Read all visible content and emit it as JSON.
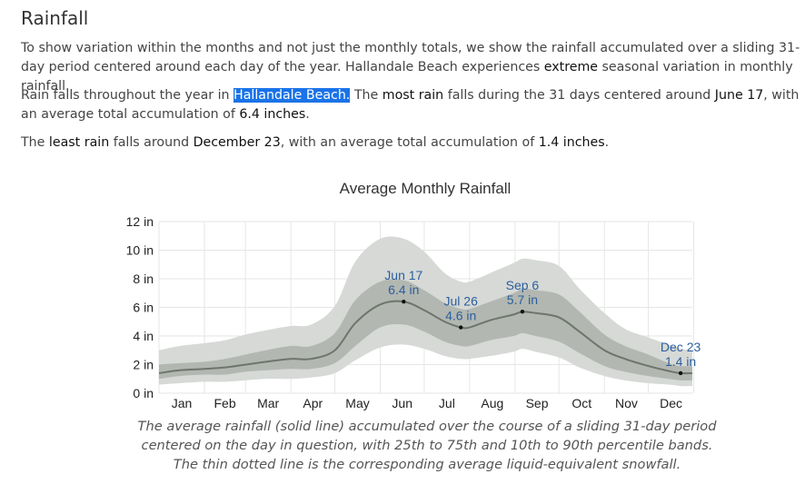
{
  "section": {
    "title": "Rainfall",
    "p1": "To show variation within the months and not just the monthly totals, we show the rainfall accumulated over a sliding 31-day period centered around each day of the year. Hallandale Beach experiences ",
    "p1_strong": "extreme",
    "p1_end": " seasonal variation in monthly rainfall.",
    "p2_a": "Rain falls throughout the year in ",
    "p2_place": "Hallandale Beach.",
    "p2_b": " The ",
    "p2_most": "most rain",
    "p2_c": " falls during the 31 days centered around ",
    "p2_date": "June 17",
    "p2_d": ", with an average total accumulation of ",
    "p2_amount": "6.4 inches",
    "p2_e": ".",
    "p3_a": "The ",
    "p3_least": "least rain",
    "p3_b": " falls around ",
    "p3_date": "December 23",
    "p3_c": ", with an average total accumulation of ",
    "p3_amount": "1.4 inches",
    "p3_d": "."
  },
  "chart_data": {
    "type": "area",
    "title": "Average Monthly Rainfall",
    "ylim": [
      0,
      12
    ],
    "y_ticks": [
      0,
      2,
      4,
      6,
      8,
      10,
      12
    ],
    "y_tick_labels": [
      "0 in",
      "2 in",
      "4 in",
      "6 in",
      "8 in",
      "10 in",
      "12 in"
    ],
    "x_tick_labels": [
      "Jan",
      "Feb",
      "Mar",
      "Apr",
      "May",
      "Jun",
      "Jul",
      "Aug",
      "Sep",
      "Oct",
      "Nov",
      "Dec"
    ],
    "xlim": [
      1,
      365
    ],
    "grid": true,
    "x_days": [
      1,
      15,
      32,
      46,
      60,
      74,
      91,
      105,
      121,
      135,
      152,
      168,
      182,
      196,
      207,
      213,
      227,
      243,
      249,
      258,
      274,
      288,
      305,
      319,
      335,
      349,
      357,
      365
    ],
    "mean": [
      1.4,
      1.6,
      1.7,
      1.8,
      2.0,
      2.2,
      2.4,
      2.4,
      3.0,
      4.9,
      6.2,
      6.4,
      5.8,
      5.0,
      4.6,
      4.6,
      5.1,
      5.5,
      5.7,
      5.6,
      5.3,
      4.3,
      3.0,
      2.4,
      1.9,
      1.55,
      1.4,
      1.4
    ],
    "p25": [
      1.0,
      1.2,
      1.3,
      1.3,
      1.5,
      1.6,
      1.7,
      1.7,
      2.1,
      3.3,
      4.6,
      4.8,
      4.3,
      3.6,
      3.3,
      3.3,
      3.7,
      4.0,
      4.2,
      4.0,
      3.6,
      2.8,
      1.9,
      1.5,
      1.2,
      1.0,
      0.9,
      0.9
    ],
    "p75": [
      2.0,
      2.1,
      2.2,
      2.4,
      2.7,
      3.0,
      3.3,
      3.3,
      4.2,
      6.5,
      7.8,
      7.9,
      7.2,
      6.3,
      5.9,
      5.9,
      6.4,
      7.0,
      7.3,
      7.2,
      6.9,
      5.7,
      4.1,
      3.3,
      2.7,
      2.1,
      1.9,
      1.9
    ],
    "p10": [
      0.6,
      0.7,
      0.8,
      0.8,
      0.9,
      1.0,
      1.0,
      1.1,
      1.4,
      2.3,
      3.2,
      3.4,
      3.1,
      2.6,
      2.4,
      2.4,
      2.6,
      2.9,
      3.1,
      2.9,
      2.5,
      1.8,
      1.2,
      0.9,
      0.7,
      0.6,
      0.5,
      0.5
    ],
    "p90": [
      3.0,
      3.3,
      3.5,
      3.7,
      4.1,
      4.4,
      4.7,
      4.8,
      6.1,
      9.2,
      10.8,
      10.8,
      9.9,
      8.4,
      7.8,
      7.8,
      8.4,
      9.1,
      9.4,
      9.3,
      8.9,
      7.3,
      5.6,
      4.5,
      3.9,
      3.4,
      3.1,
      3.0
    ],
    "annotations": [
      {
        "day": 168,
        "value": 6.4,
        "date": "Jun 17",
        "label": "6.4 in"
      },
      {
        "day": 207,
        "value": 4.6,
        "date": "Jul 26",
        "label": "4.6 in"
      },
      {
        "day": 249,
        "value": 5.7,
        "date": "Sep 6",
        "label": "5.7 in"
      },
      {
        "day": 357,
        "value": 1.4,
        "date": "Dec 23",
        "label": "1.4 in"
      }
    ],
    "colors": {
      "band_outer": "#d6d9d6",
      "band_inner": "#b2b7b1",
      "mean_line": "#6e756c",
      "grid": "#e6e6e6",
      "label": "#2b5f9e"
    }
  },
  "caption": "The average rainfall (solid line) accumulated over the course of a sliding 31-day period centered on the day in question, with 25th to 75th and 10th to 90th percentile bands. The thin dotted line is the corresponding average liquid-equivalent snowfall."
}
